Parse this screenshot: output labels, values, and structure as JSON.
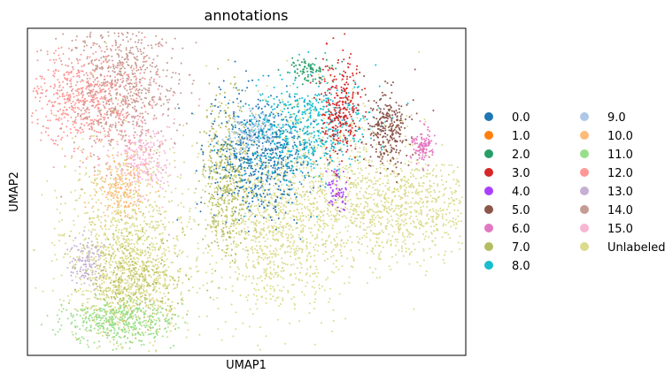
{
  "chart_data": {
    "type": "scatter",
    "title": "annotations",
    "xlabel": "UMAP1",
    "ylabel": "UMAP2",
    "grid": false,
    "ticks": false,
    "legend_position": "right (outside plot)",
    "legend_columns": 2,
    "series": [
      {
        "name": "0.0",
        "color": "#1f77b4"
      },
      {
        "name": "1.0",
        "color": "#ff7f0e"
      },
      {
        "name": "2.0",
        "color": "#279e68"
      },
      {
        "name": "3.0",
        "color": "#d62728"
      },
      {
        "name": "4.0",
        "color": "#aa40fc"
      },
      {
        "name": "5.0",
        "color": "#8c564b"
      },
      {
        "name": "6.0",
        "color": "#e377c2"
      },
      {
        "name": "7.0",
        "color": "#b5bd61"
      },
      {
        "name": "8.0",
        "color": "#17becf"
      },
      {
        "name": "9.0",
        "color": "#aec7e8"
      },
      {
        "name": "10.0",
        "color": "#ffbb78"
      },
      {
        "name": "11.0",
        "color": "#98df8a"
      },
      {
        "name": "12.0",
        "color": "#ff9896"
      },
      {
        "name": "13.0",
        "color": "#c5b0d5"
      },
      {
        "name": "14.0",
        "color": "#c49c94"
      },
      {
        "name": "15.0",
        "color": "#f7b6d2"
      },
      {
        "name": "Unlabeled",
        "color": "#dbdb8d"
      }
    ]
  }
}
